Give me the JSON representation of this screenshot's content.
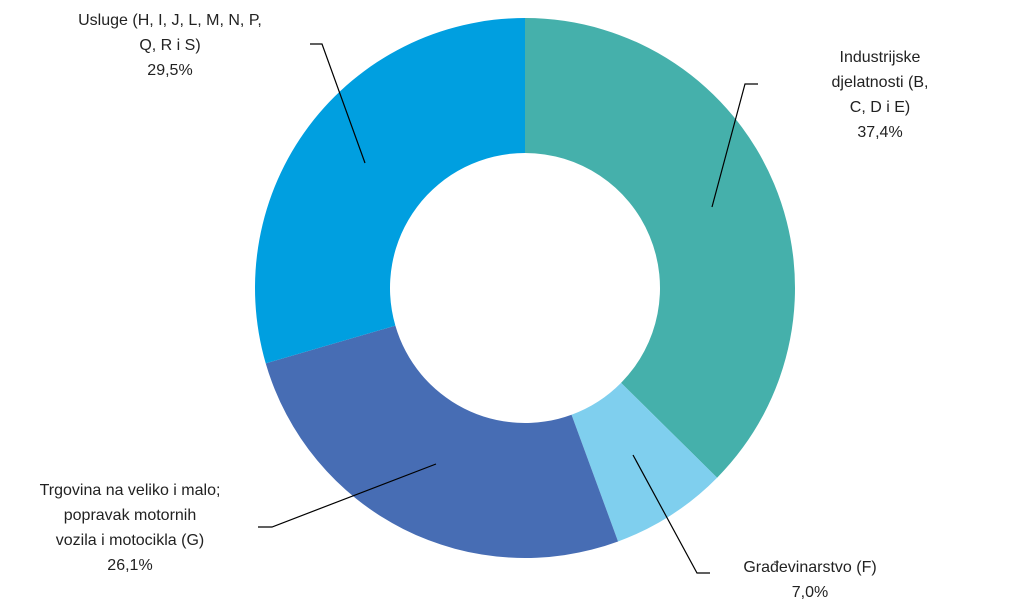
{
  "chart_data": {
    "type": "pie",
    "categories": [
      "Industrijske djelatnosti (B,\nC, D i E)",
      "Građevinarstvo (F)",
      "Trgovina na veliko i malo;\npopravak motornih\nvozila i motocikla  (G)",
      "Usluge (H, I, J, L, M, N, P,\nQ, R i S)"
    ],
    "values": [
      37.4,
      7.0,
      26.1,
      29.5
    ],
    "value_labels": [
      "37,4%",
      "7,0%",
      "26,1%",
      "29,5%"
    ],
    "colors": [
      "#45b0ab",
      "#7fcfee",
      "#476db4",
      "#009fe0"
    ],
    "donut": true
  }
}
